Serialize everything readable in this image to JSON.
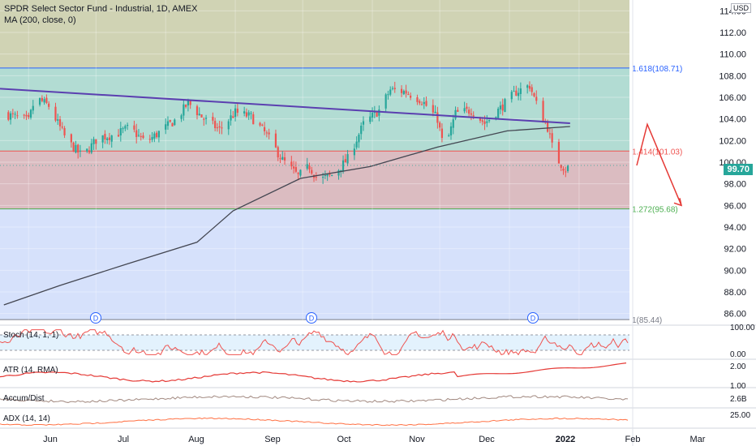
{
  "legend": {
    "title": "SPDR Select Sector Fund - Industrial, 1D, AMEX",
    "ma": "MA (200, close, 0)"
  },
  "currency": "USD",
  "last_price": "99.70",
  "panes": {
    "stoch": "Stoch (14, 1, 1)",
    "atr": "ATR (14, RMA)",
    "accum": "Accum/Dist",
    "adx": "ADX (14, 14)"
  },
  "colors": {
    "up": "#26a69a",
    "down": "#ef5350",
    "ma": "#434651",
    "trendline": "#5b3fb0",
    "projection": "#e53935",
    "fib_top": "#d0d3b4",
    "fib_upper": "#b2dcd3",
    "fib_mid": "#dbbcc1",
    "fib_lower": "#d6e1fb"
  },
  "chart_data": {
    "type": "candlestick",
    "title": "SPDR Select Sector Fund - Industrial, 1D, AMEX",
    "y_axis": {
      "ticks": [
        86,
        88,
        90,
        92,
        94,
        96,
        98,
        100,
        102,
        104,
        106,
        108,
        110,
        112,
        114
      ],
      "ylim": [
        85.0,
        115.0
      ]
    },
    "x_axis": {
      "ticks": [
        "Jun",
        "Jul",
        "Aug",
        "Sep",
        "Oct",
        "Nov",
        "Dec",
        "2022",
        "Feb",
        "Mar"
      ]
    },
    "fib_levels": [
      {
        "label": "1.618(108.71)",
        "value": 108.71,
        "color": "#2962ff"
      },
      {
        "label": "1.414(101.03)",
        "value": 101.03,
        "color": "#ef5350"
      },
      {
        "label": "1.272(95.68)",
        "value": 95.68,
        "color": "#4caf50"
      },
      {
        "label": "1(85.44)",
        "value": 85.44,
        "color": "#787b86"
      }
    ],
    "dividend_markers": [
      {
        "label": "D",
        "date": "Jun"
      },
      {
        "label": "D",
        "date": "Sep"
      },
      {
        "label": "D",
        "date": "Dec"
      }
    ],
    "price_path": [
      [
        "May 21",
        104.5
      ],
      [
        "Jun 1",
        103.8
      ],
      [
        "Jun 4",
        106.0
      ],
      [
        "Jun 10",
        105.2
      ],
      [
        "Jun 18",
        102.0
      ],
      [
        "Jun 25",
        100.5
      ],
      [
        "Jul 2",
        102.3
      ],
      [
        "Jul 9",
        102.5
      ],
      [
        "Jul 16",
        103.2
      ],
      [
        "Jul 23",
        101.8
      ],
      [
        "Jul 30",
        102.9
      ],
      [
        "Aug 6",
        104.0
      ],
      [
        "Aug 11",
        105.5
      ],
      [
        "Aug 18",
        104.0
      ],
      [
        "Aug 25",
        103.0
      ],
      [
        "Sep 1",
        104.6
      ],
      [
        "Sep 8",
        104.2
      ],
      [
        "Sep 15",
        102.5
      ],
      [
        "Sep 22",
        100.2
      ],
      [
        "Sep 29",
        98.7
      ],
      [
        "Oct 4",
        99.6
      ],
      [
        "Oct 8",
        98.3
      ],
      [
        "Oct 15",
        98.9
      ],
      [
        "Oct 21",
        100.3
      ],
      [
        "Oct 28",
        103.5
      ],
      [
        "Nov 4",
        104.8
      ],
      [
        "Nov 9",
        106.7
      ],
      [
        "Nov 16",
        106.5
      ],
      [
        "Nov 23",
        105.7
      ],
      [
        "Nov 30",
        104.0
      ],
      [
        "Dec 3",
        101.0
      ],
      [
        "Dec 8",
        104.5
      ],
      [
        "Dec 15",
        104.8
      ],
      [
        "Dec 21",
        103.6
      ],
      [
        "Dec 28",
        105.0
      ],
      [
        "Jan 4",
        106.5
      ],
      [
        "Jan 10",
        107.1
      ],
      [
        "Jan 14",
        104.8
      ],
      [
        "Jan 18",
        103.2
      ],
      [
        "Jan 21",
        100.6
      ],
      [
        "Jan 26",
        99.3
      ],
      [
        "Jan 28",
        99.7
      ]
    ],
    "ma_200": [
      [
        "May 21",
        86.8
      ],
      [
        "Jun 15",
        88.6
      ],
      [
        "Jul 15",
        90.6
      ],
      [
        "Aug 15",
        92.6
      ],
      [
        "Aug 31",
        95.5
      ],
      [
        "Sep 30",
        98.5
      ],
      [
        "Oct 31",
        99.6
      ],
      [
        "Nov 30",
        101.4
      ],
      [
        "Dec 31",
        102.9
      ],
      [
        "Jan 28",
        103.3
      ]
    ],
    "trendline": [
      [
        "May 21",
        106.8
      ],
      [
        "Jan 28",
        103.6
      ]
    ],
    "projection": [
      [
        99.7,
        "Jan 28"
      ],
      [
        103.5,
        "Jan 31"
      ],
      [
        96.0,
        "Feb 10"
      ]
    ],
    "indicators": {
      "stoch": {
        "ticks": [
          0,
          100
        ],
        "tick_labels": [
          "0.00",
          "100.00"
        ]
      },
      "atr": {
        "tick_labels": [
          "1.00",
          "2.00"
        ]
      },
      "accum_dist": {
        "tick_labels": [
          "2.6B"
        ]
      },
      "adx": {
        "tick_labels": [
          "25.00"
        ]
      }
    }
  }
}
